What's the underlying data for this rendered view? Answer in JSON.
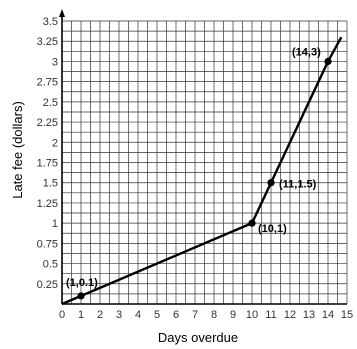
{
  "chart_data": {
    "type": "line",
    "xlabel": "Days overdue",
    "ylabel": "Late fee (dollars)",
    "xlim": [
      0,
      15
    ],
    "ylim": [
      0,
      3.5
    ],
    "grid": true,
    "x_ticks": [
      "0",
      "1",
      "2",
      "3",
      "4",
      "5",
      "6",
      "7",
      "8",
      "9",
      "10",
      "11",
      "12",
      "13",
      "14",
      "15"
    ],
    "y_ticks": [
      "0.25",
      "0.5",
      "0.75",
      "1",
      "1.25",
      "1.5",
      "1.75",
      "2",
      "2.25",
      "2.5",
      "2.75",
      "3",
      "3.25",
      "3.5"
    ],
    "line": {
      "x": [
        0,
        10,
        11,
        14,
        14.7
      ],
      "y": [
        0,
        1,
        1.5,
        3,
        3.3
      ]
    },
    "points": [
      {
        "label": "(1,0.1)",
        "x": 1,
        "y": 0.1
      },
      {
        "label": "(10,1)",
        "x": 10,
        "y": 1
      },
      {
        "label": "(11,1.5)",
        "x": 11,
        "y": 1.5
      },
      {
        "label": "(14,3)",
        "x": 14,
        "y": 3
      }
    ],
    "colors": {
      "line": "#000000",
      "grid": "#333333",
      "point": "#000000"
    }
  }
}
